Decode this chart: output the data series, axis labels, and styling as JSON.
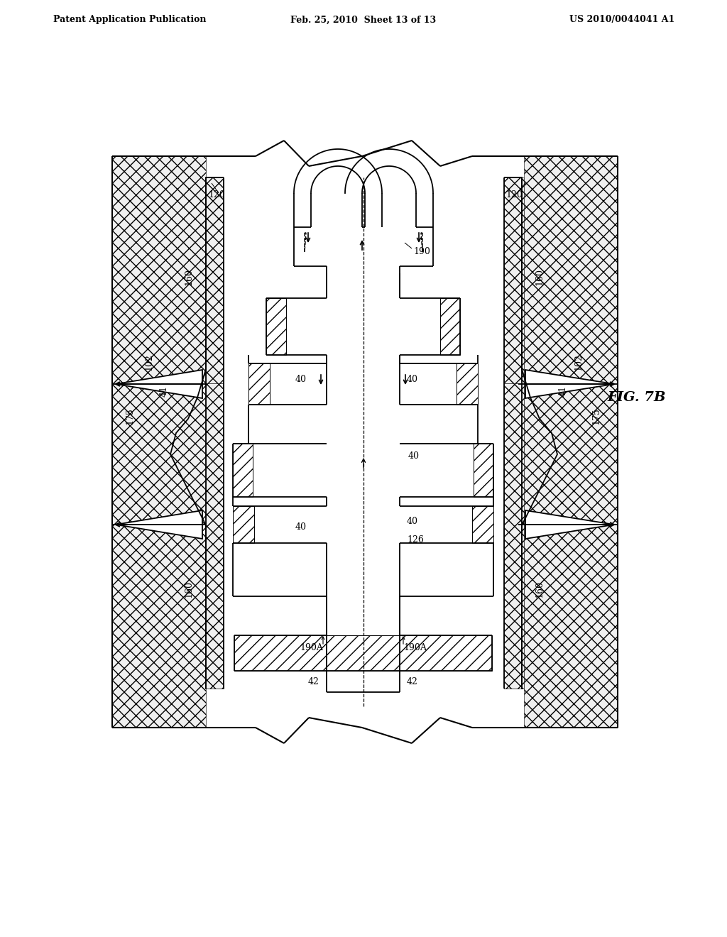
{
  "header_left": "Patent Application Publication",
  "header_center": "Feb. 25, 2010  Sheet 13 of 13",
  "header_right": "US 2010/0044041 A1",
  "fig_label": "FIG. 7B",
  "background_color": "#ffffff"
}
